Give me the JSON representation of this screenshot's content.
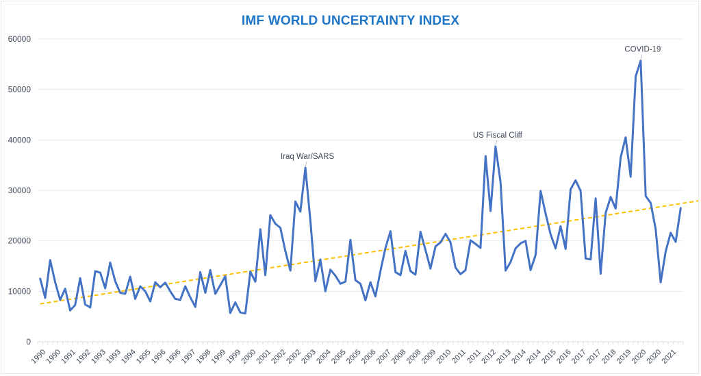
{
  "chart_data": {
    "type": "line",
    "title": "IMF WORLD UNCERTAINTY INDEX",
    "xlabel": "",
    "ylabel": "",
    "ylim": [
      0,
      60000
    ],
    "yticks": [
      0,
      10000,
      20000,
      30000,
      40000,
      50000,
      60000
    ],
    "grid": true,
    "legend": "none",
    "x_tick_labels": [
      "1990",
      "1990",
      "1991",
      "1992",
      "1993",
      "1993",
      "1994",
      "1995",
      "1996",
      "1996",
      "1997",
      "1998",
      "1999",
      "1999",
      "2000",
      "2001",
      "2002",
      "2002",
      "2003",
      "2004",
      "2005",
      "2005",
      "2006",
      "2007",
      "2008",
      "2008",
      "2009",
      "2010",
      "2011",
      "2011",
      "2012",
      "2013",
      "2014",
      "2014",
      "2015",
      "2016",
      "2017",
      "2017",
      "2018",
      "2019",
      "2020",
      "2020",
      "2021"
    ],
    "x_tick_every": 3,
    "series": [
      {
        "name": "World Uncertainty Index",
        "color": "#4472c4",
        "style": "solid",
        "values": [
          12500,
          8700,
          16200,
          11800,
          8300,
          10500,
          6200,
          7300,
          12600,
          7400,
          6800,
          14000,
          13700,
          10600,
          15700,
          12000,
          9700,
          9500,
          12900,
          8500,
          11000,
          10000,
          8000,
          11800,
          10800,
          11700,
          10000,
          8500,
          8300,
          11000,
          8800,
          6900,
          13800,
          9700,
          14200,
          9500,
          11200,
          13000,
          5700,
          7800,
          5800,
          5600,
          13900,
          11900,
          22300,
          13200,
          25100,
          23400,
          22600,
          18000,
          14100,
          27800,
          25800,
          34500,
          24000,
          12000,
          16300,
          10000,
          14300,
          13100,
          11500,
          11900,
          20200,
          12200,
          11500,
          8200,
          11800,
          9000,
          14000,
          18600,
          21900,
          13800,
          13200,
          18000,
          14000,
          13300,
          21800,
          18200,
          14500,
          18900,
          19700,
          21400,
          19700,
          14700,
          13400,
          14200,
          20100,
          19400,
          18600,
          36800,
          25900,
          38700,
          31600,
          14100,
          15800,
          18500,
          19500,
          20000,
          14200,
          17200,
          29900,
          25400,
          21300,
          18500,
          22900,
          18400,
          30200,
          32000,
          29900,
          16500,
          16300,
          28400,
          13500,
          25500,
          28700,
          26400,
          36500,
          40500,
          32700,
          52600,
          55700,
          28900,
          27500,
          22300,
          11800,
          17900,
          21600,
          19800,
          26500
        ]
      },
      {
        "name": "Linear trend",
        "color": "#ffc000",
        "style": "dashed",
        "type": "trendline",
        "start_value": 7500,
        "end_value": 27800
      }
    ],
    "annotations": [
      {
        "text": "Iraq War/SARS",
        "point_index": 53
      },
      {
        "text": "US Fiscal Cliff",
        "point_index": 91
      },
      {
        "text": "COVID-19",
        "point_index": 120
      }
    ]
  }
}
